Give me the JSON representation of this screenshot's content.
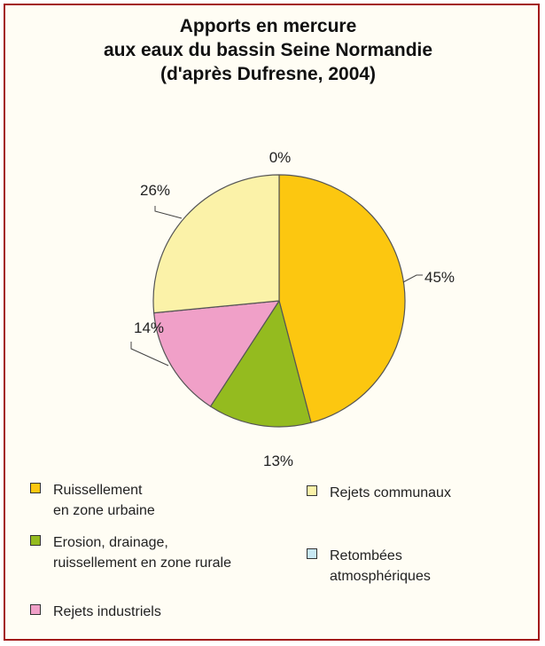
{
  "chart_data": {
    "type": "pie",
    "title_lines": [
      "Apports en mercure",
      "aux eaux du bassin Seine Normandie",
      "(d'après Dufresne, 2004)"
    ],
    "slices": [
      {
        "name": "Ruissellement en zone urbaine",
        "legend_lines": [
          "Ruissellement",
          "en zone urbaine"
        ],
        "value": 45,
        "label": "45%",
        "color": "#fcc710"
      },
      {
        "name": "Erosion, drainage, ruissellement en zone rurale",
        "legend_lines": [
          "Erosion, drainage,",
          "ruissellement en zone rurale"
        ],
        "value": 13,
        "label": "13%",
        "color": "#94bb1f"
      },
      {
        "name": "Rejets industriels",
        "legend_lines": [
          "Rejets industriels"
        ],
        "value": 14,
        "label": "14%",
        "color": "#f0a0c8"
      },
      {
        "name": "Rejets communaux",
        "legend_lines": [
          "Rejets communaux"
        ],
        "value": 26,
        "label": "26%",
        "color": "#fbf2a8"
      },
      {
        "name": "Retombées atmosphériques",
        "legend_lines": [
          "Retombées",
          "atmosphériques"
        ],
        "value": 0,
        "label": "0%",
        "color": "#c8e8f4"
      }
    ],
    "legend_position": "bottom"
  },
  "colors": {
    "frame_border": "#a31a1a",
    "background": "#fffdf4"
  }
}
